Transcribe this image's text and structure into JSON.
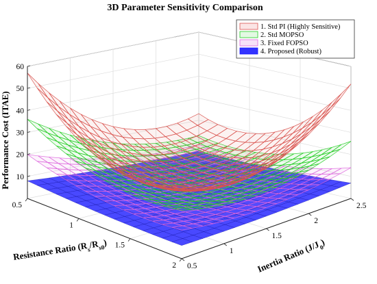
{
  "chart_data": {
    "type": "surface3d",
    "title": "3D Parameter Sensitivity Comparison",
    "zlabel": "Performance Cost (ITAE)",
    "xlabel": {
      "pre": "Resistance Ratio (R",
      "sub1": "s",
      "mid": "/R",
      "sub2": "s0",
      "post": ")"
    },
    "ylabel": {
      "pre": "Inertia Ratio (J/J",
      "sub": "0",
      "post": ")"
    },
    "x_ticks": [
      "0.5",
      "1",
      "1.5",
      "2"
    ],
    "y_ticks": [
      "0.5",
      "1",
      "1.5",
      "2",
      "2.5"
    ],
    "z_ticks": [
      "10",
      "20",
      "30",
      "40",
      "50",
      "60"
    ],
    "x_range": [
      0.5,
      2.0
    ],
    "y_range": [
      0.5,
      2.5
    ],
    "z_range": [
      0,
      60
    ],
    "grid": true,
    "legend_position": "top-right",
    "series": [
      {
        "name": "1. Std PI (Highly Sensitive)",
        "color": "#d9534f",
        "style": "mesh",
        "corners": {
          "x0_5_y0_5": 57,
          "x2_y0_5": 33,
          "x0_5_y2_5": 23,
          "x2_y2_5": 52
        },
        "min": 11
      },
      {
        "name": "2. Std MOPSO",
        "color": "#22cc22",
        "style": "mesh",
        "corners": {
          "x0_5_y0_5": 36,
          "x2_y0_5": 22,
          "x0_5_y2_5": 13,
          "x2_y2_5": 26
        },
        "min": 10
      },
      {
        "name": "3. Fixed FOPSO",
        "color": "#dd66dd",
        "style": "mesh",
        "corners": {
          "x0_5_y0_5": 20,
          "x2_y0_5": 13,
          "x0_5_y2_5": 9,
          "x2_y2_5": 14
        },
        "min": 6
      },
      {
        "name": "4. Proposed (Robust)",
        "color": "#1a1aff",
        "style": "surface",
        "corners": {
          "x0_5_y0_5": 8,
          "x2_y0_5": 6,
          "x0_5_y2_5": 6,
          "x2_y2_5": 7
        },
        "min": 5
      }
    ]
  }
}
